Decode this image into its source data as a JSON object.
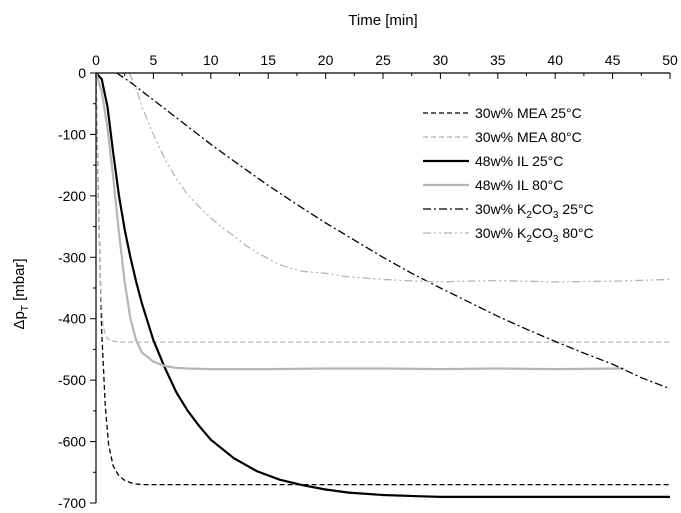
{
  "chart_data": {
    "type": "line",
    "xlabel": "Time [min]",
    "ylabel": "Δp_T [mbar]",
    "ylabel_main": "Δp",
    "ylabel_sub": "T",
    "ylabel_unit": " [mbar]",
    "xlim": [
      0,
      50
    ],
    "ylim": [
      -700,
      0
    ],
    "x_ticks": [
      0,
      5,
      10,
      15,
      20,
      25,
      30,
      35,
      40,
      45,
      50
    ],
    "y_ticks": [
      0,
      -100,
      -200,
      -300,
      -400,
      -500,
      -600,
      -700
    ],
    "grid": false,
    "legend_position": "top-right",
    "series": [
      {
        "name": "30w% MEA 25°C",
        "name_parts": [
          "30w% MEA 25°C"
        ],
        "color": "#000000",
        "dash": "dashed",
        "x": [
          0,
          0.2,
          0.5,
          0.8,
          1.1,
          1.5,
          2,
          2.5,
          3,
          3.5,
          4,
          4.5,
          5,
          6,
          8,
          10,
          15,
          20,
          30,
          40,
          50
        ],
        "y": [
          0,
          -200,
          -420,
          -540,
          -605,
          -640,
          -656,
          -663,
          -667,
          -669,
          -670,
          -670,
          -670,
          -670,
          -670,
          -670,
          -670,
          -670,
          -670,
          -670,
          -670
        ]
      },
      {
        "name": "30w% MEA 80°C",
        "name_parts": [
          "30w% MEA 80°C"
        ],
        "color": "#b5b5b5",
        "dash": "dashed",
        "x": [
          0,
          0.2,
          0.4,
          0.6,
          0.9,
          1.2,
          1.6,
          2,
          3,
          4,
          10,
          20,
          30,
          40,
          50
        ],
        "y": [
          0,
          -200,
          -350,
          -410,
          -430,
          -435,
          -437,
          -438,
          -438,
          -438,
          -438,
          -438,
          -438,
          -438,
          -438
        ]
      },
      {
        "name": "48w% IL 25°C",
        "name_parts": [
          "48w% IL 25°C"
        ],
        "color": "#000000",
        "dash": "solid",
        "x": [
          0,
          0.5,
          1,
          1.5,
          2,
          2.5,
          3,
          3.5,
          4,
          5,
          6,
          7,
          8,
          9,
          10,
          12,
          14,
          16,
          18,
          20,
          22,
          25,
          28,
          30,
          35,
          40,
          45,
          50
        ],
        "y": [
          0,
          -10,
          -55,
          -130,
          -200,
          -255,
          -300,
          -340,
          -375,
          -435,
          -480,
          -520,
          -550,
          -575,
          -597,
          -627,
          -648,
          -662,
          -671,
          -678,
          -683,
          -687,
          -689,
          -690,
          -690,
          -690,
          -690,
          -690
        ]
      },
      {
        "name": "48w% IL 80°C",
        "name_parts": [
          "48w% IL 80°C"
        ],
        "color": "#b5b5b5",
        "dash": "solid",
        "x": [
          0,
          0.5,
          1,
          1.5,
          2,
          2.5,
          3,
          3.5,
          4,
          5,
          6,
          7,
          8,
          10,
          15,
          20,
          25,
          30,
          35,
          40,
          46
        ],
        "y": [
          0,
          -30,
          -90,
          -170,
          -260,
          -340,
          -400,
          -435,
          -455,
          -470,
          -477,
          -480,
          -481,
          -482,
          -482,
          -481,
          -481,
          -482,
          -481,
          -482,
          -481
        ]
      },
      {
        "name": "30w% K2CO3 25°C",
        "name_parts": [
          "30w% K",
          "2",
          "CO",
          "3",
          " 25°C"
        ],
        "color": "#000000",
        "dash": "dashdot",
        "x": [
          1.8,
          3,
          5,
          7.5,
          10,
          12.5,
          15,
          17.5,
          20,
          22.5,
          25,
          27.5,
          30,
          32.5,
          35,
          37.5,
          40,
          42.5,
          45,
          47.5,
          50
        ],
        "y": [
          0,
          -15,
          -44,
          -80,
          -116,
          -150,
          -183,
          -214,
          -244,
          -272,
          -300,
          -326,
          -350,
          -373,
          -396,
          -417,
          -437,
          -456,
          -474,
          -496,
          -514
        ]
      },
      {
        "name": "30w% K2CO3 80°C",
        "name_parts": [
          "30w% K",
          "2",
          "CO",
          "3",
          " 80°C"
        ],
        "color": "#b5b5b5",
        "dash": "dashdotdot",
        "x": [
          2.9,
          3.5,
          4,
          5,
          6,
          7,
          8,
          9,
          10,
          11,
          12,
          13,
          14,
          15,
          16,
          17,
          18,
          20,
          22,
          25,
          27,
          30,
          32,
          35,
          40,
          45,
          50
        ],
        "y": [
          0,
          -25,
          -55,
          -100,
          -140,
          -172,
          -198,
          -218,
          -236,
          -252,
          -265,
          -280,
          -292,
          -302,
          -312,
          -318,
          -323,
          -326,
          -332,
          -336,
          -338,
          -340,
          -339,
          -338,
          -340,
          -339,
          -336
        ]
      }
    ]
  }
}
